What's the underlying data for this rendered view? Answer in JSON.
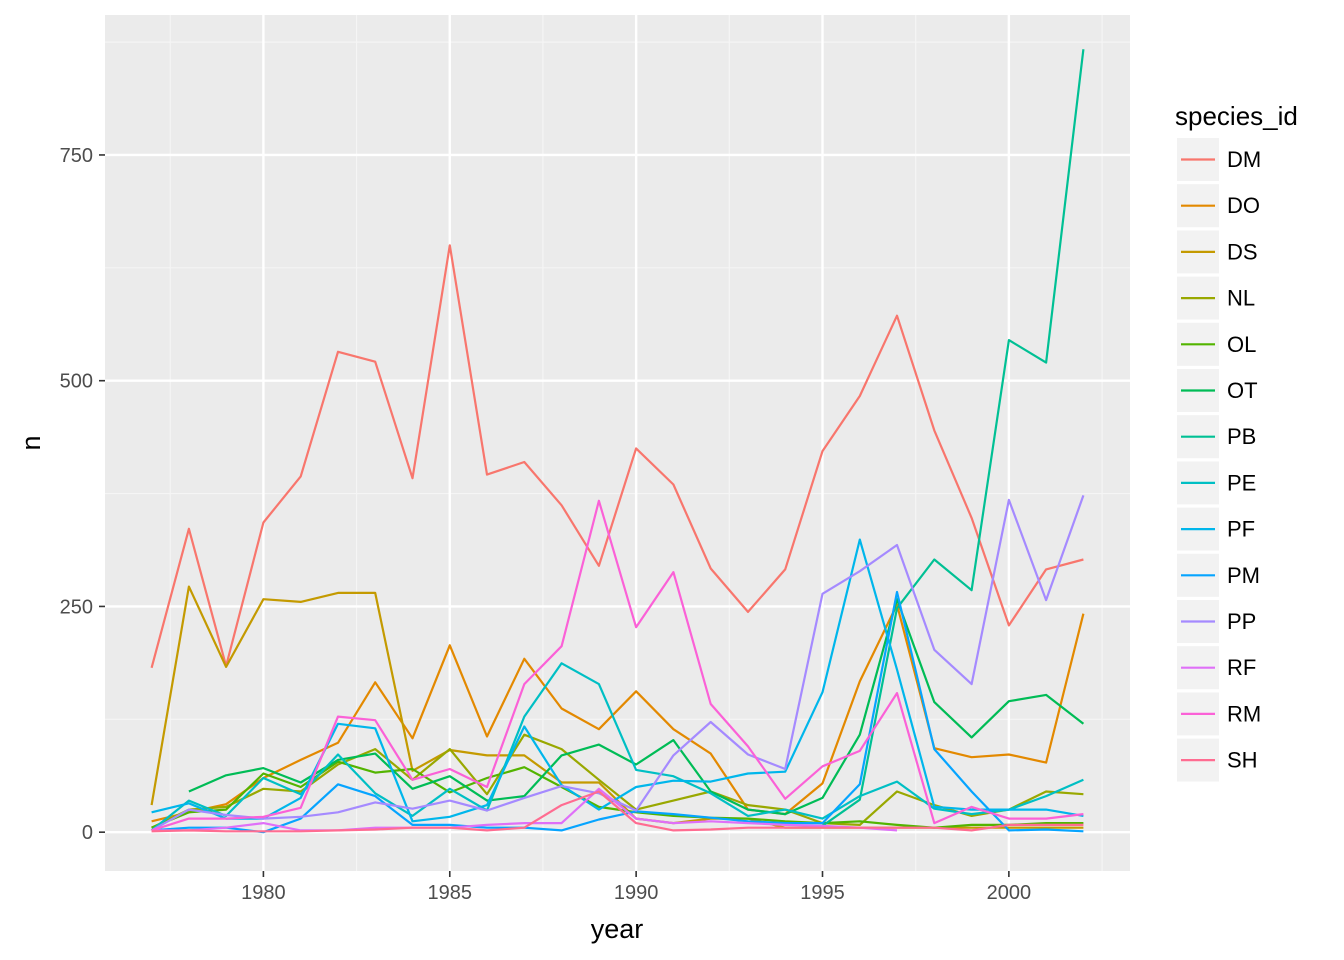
{
  "chart_data": {
    "type": "line",
    "xlabel": "year",
    "ylabel": "n",
    "xlim": [
      1975.75,
      2003.25
    ],
    "ylim": [
      -43,
      905
    ],
    "xticks": [
      1980,
      1985,
      1990,
      1995,
      2000
    ],
    "xtick_labels": [
      "1980",
      "1985",
      "1990",
      "1995",
      "2000"
    ],
    "yticks": [
      0,
      250,
      500,
      750
    ],
    "ytick_labels": [
      "0",
      "250",
      "500",
      "750"
    ],
    "grid": true,
    "legend_title": "species_id",
    "legend_position": "right",
    "series": [
      {
        "name": "DM",
        "color": "#F8766D",
        "x": [
          1977,
          1978,
          1979,
          1980,
          1981,
          1982,
          1983,
          1984,
          1985,
          1986,
          1987,
          1988,
          1989,
          1990,
          1991,
          1992,
          1993,
          1994,
          1995,
          1996,
          1997,
          1998,
          1999,
          2000,
          2001,
          2002
        ],
        "y": [
          182,
          336,
          184,
          343,
          394,
          532,
          521,
          392,
          650,
          396,
          410,
          362,
          295,
          425,
          385,
          292,
          244,
          291,
          422,
          483,
          572,
          445,
          348,
          229,
          291,
          302
        ]
      },
      {
        "name": "DO",
        "color": "#E38900",
        "x": [
          1977,
          1978,
          1979,
          1980,
          1981,
          1982,
          1983,
          1984,
          1985,
          1986,
          1987,
          1988,
          1989,
          1990,
          1991,
          1992,
          1993,
          1994,
          1995,
          1996,
          1997,
          1998,
          1999,
          2000,
          2001,
          2002
        ],
        "y": [
          12,
          22,
          31,
          60,
          80,
          99,
          166,
          104,
          207,
          106,
          192,
          137,
          114,
          156,
          114,
          87,
          25,
          20,
          54,
          167,
          252,
          93,
          83,
          86,
          77,
          242
        ]
      },
      {
        "name": "DS",
        "color": "#C49A00",
        "x": [
          1977,
          1978,
          1979,
          1980,
          1981,
          1982,
          1983,
          1984,
          1985,
          1986,
          1987,
          1988,
          1989,
          1990,
          1991,
          1992,
          1993,
          1994,
          1995,
          1996,
          1997,
          1998,
          1999,
          2000,
          2001,
          2002
        ],
        "y": [
          30,
          272,
          183,
          258,
          255,
          265,
          265,
          68,
          91,
          85,
          85,
          55,
          55,
          15,
          10,
          15,
          15,
          5,
          5,
          5,
          5,
          5,
          5,
          5,
          5,
          5
        ]
      },
      {
        "name": "NL",
        "color": "#99A800",
        "x": [
          1977,
          1978,
          1979,
          1980,
          1981,
          1982,
          1983,
          1984,
          1985,
          1986,
          1987,
          1988,
          1989,
          1990,
          1991,
          1992,
          1993,
          1994,
          1995,
          1996,
          1997,
          1998,
          1999,
          2000,
          2001,
          2002
        ],
        "y": [
          5,
          25,
          28,
          48,
          45,
          75,
          92,
          58,
          92,
          42,
          108,
          92,
          58,
          25,
          35,
          45,
          30,
          25,
          10,
          8,
          45,
          30,
          18,
          25,
          45,
          42
        ]
      },
      {
        "name": "OL",
        "color": "#53B400",
        "x": [
          1977,
          1978,
          1979,
          1980,
          1981,
          1982,
          1983,
          1984,
          1985,
          1986,
          1987,
          1988,
          1989,
          1990,
          1991,
          1992,
          1993,
          1994,
          1995,
          1996,
          1997,
          1998,
          1999,
          2000,
          2001,
          2002
        ],
        "y": [
          5,
          22,
          25,
          65,
          50,
          78,
          66,
          70,
          44,
          60,
          72,
          50,
          28,
          22,
          18,
          16,
          15,
          12,
          10,
          12,
          8,
          5,
          8,
          8,
          10,
          10
        ]
      },
      {
        "name": "OT",
        "color": "#00BC56",
        "x": [
          1978,
          1979,
          1980,
          1981,
          1982,
          1983,
          1984,
          1985,
          1986,
          1987,
          1988,
          1989,
          1990,
          1991,
          1992,
          1993,
          1994,
          1995,
          1996,
          1997,
          1998,
          1999,
          2000,
          2001,
          2002
        ],
        "y": [
          45,
          63,
          71,
          55,
          80,
          87,
          48,
          62,
          35,
          40,
          85,
          97,
          75,
          102,
          45,
          25,
          20,
          38,
          108,
          258,
          144,
          105,
          145,
          152,
          120
        ]
      },
      {
        "name": "PB",
        "color": "#00C094",
        "x": [
          1995,
          1996,
          1997,
          1998,
          1999,
          2000,
          2001,
          2002
        ],
        "y": [
          7,
          36,
          248,
          302,
          268,
          545,
          520,
          867
        ]
      },
      {
        "name": "PE",
        "color": "#00BFC4",
        "x": [
          1977,
          1978,
          1979,
          1980,
          1981,
          1982,
          1983,
          1984,
          1985,
          1986,
          1987,
          1988,
          1989,
          1990,
          1991,
          1992,
          1993,
          1994,
          1995,
          1996,
          1997,
          1998,
          1999,
          2000,
          2001,
          2002
        ],
        "y": [
          2,
          35,
          18,
          60,
          42,
          86,
          43,
          18,
          48,
          24,
          128,
          187,
          164,
          69,
          62,
          43,
          18,
          25,
          15,
          40,
          56,
          26,
          20,
          25,
          40,
          58
        ]
      },
      {
        "name": "PF",
        "color": "#00B6EB",
        "x": [
          1977,
          1978,
          1979,
          1980,
          1981,
          1982,
          1983,
          1984,
          1985,
          1986,
          1987,
          1988,
          1989,
          1990,
          1991,
          1992,
          1993,
          1994,
          1995,
          1996,
          1997,
          1998,
          1999,
          2000,
          2001,
          2002
        ],
        "y": [
          22,
          32,
          15,
          15,
          38,
          120,
          115,
          12,
          17,
          30,
          117,
          52,
          25,
          50,
          57,
          56,
          65,
          67,
          155,
          324,
          180,
          28,
          25,
          25,
          25,
          18
        ]
      },
      {
        "name": "PM",
        "color": "#06A4FF",
        "x": [
          1977,
          1978,
          1979,
          1980,
          1981,
          1982,
          1983,
          1984,
          1985,
          1986,
          1987,
          1988,
          1989,
          1990,
          1991,
          1992,
          1993,
          1994,
          1995,
          1996,
          1997,
          1998,
          1999,
          2000,
          2001,
          2002
        ],
        "y": [
          2,
          5,
          5,
          0,
          15,
          53,
          40,
          8,
          8,
          5,
          5,
          2,
          14,
          23,
          20,
          16,
          12,
          10,
          10,
          53,
          266,
          92,
          45,
          2,
          3,
          1
        ]
      },
      {
        "name": "PP",
        "color": "#A58AFF",
        "x": [
          1977,
          1978,
          1979,
          1980,
          1981,
          1982,
          1983,
          1984,
          1985,
          1986,
          1987,
          1988,
          1989,
          1990,
          1991,
          1992,
          1993,
          1994,
          1995,
          1996,
          1997,
          1998,
          1999,
          2000,
          2001,
          2002
        ],
        "y": [
          2,
          25,
          19,
          15,
          17,
          22,
          33,
          26,
          35,
          24,
          38,
          51,
          43,
          24,
          85,
          122,
          86,
          70,
          264,
          289,
          318,
          202,
          164,
          368,
          257,
          373
        ]
      },
      {
        "name": "RF",
        "color": "#DF70F8",
        "x": [
          1977,
          1978,
          1979,
          1980,
          1981,
          1982,
          1983,
          1984,
          1985,
          1986,
          1987,
          1988,
          1989,
          1990,
          1991,
          1992,
          1993,
          1994,
          1995,
          1996,
          1997
        ],
        "y": [
          2,
          2,
          5,
          10,
          2,
          2,
          5,
          5,
          5,
          8,
          10,
          10,
          48,
          15,
          10,
          12,
          10,
          8,
          7,
          5,
          2
        ]
      },
      {
        "name": "RM",
        "color": "#FB61D7",
        "x": [
          1977,
          1978,
          1979,
          1980,
          1981,
          1982,
          1983,
          1984,
          1985,
          1986,
          1987,
          1988,
          1989,
          1990,
          1991,
          1992,
          1993,
          1994,
          1995,
          1996,
          1997,
          1998,
          1999,
          2000,
          2001,
          2002
        ],
        "y": [
          2,
          15,
          15,
          17,
          27,
          128,
          124,
          58,
          70,
          50,
          164,
          206,
          367,
          227,
          288,
          142,
          95,
          37,
          73,
          90,
          154,
          10,
          28,
          15,
          15,
          20
        ]
      },
      {
        "name": "SH",
        "color": "#FF6C91",
        "x": [
          1977,
          1978,
          1979,
          1980,
          1981,
          1982,
          1983,
          1984,
          1985,
          1986,
          1987,
          1988,
          1989,
          1990,
          1991,
          1992,
          1993,
          1994,
          1995,
          1996,
          1997,
          1998,
          1999,
          2000,
          2001,
          2002
        ],
        "y": [
          1,
          2,
          1,
          1,
          1,
          2,
          3,
          5,
          5,
          2,
          5,
          30,
          45,
          10,
          2,
          3,
          5,
          5,
          5,
          5,
          5,
          5,
          2,
          8,
          8,
          8
        ]
      }
    ]
  }
}
